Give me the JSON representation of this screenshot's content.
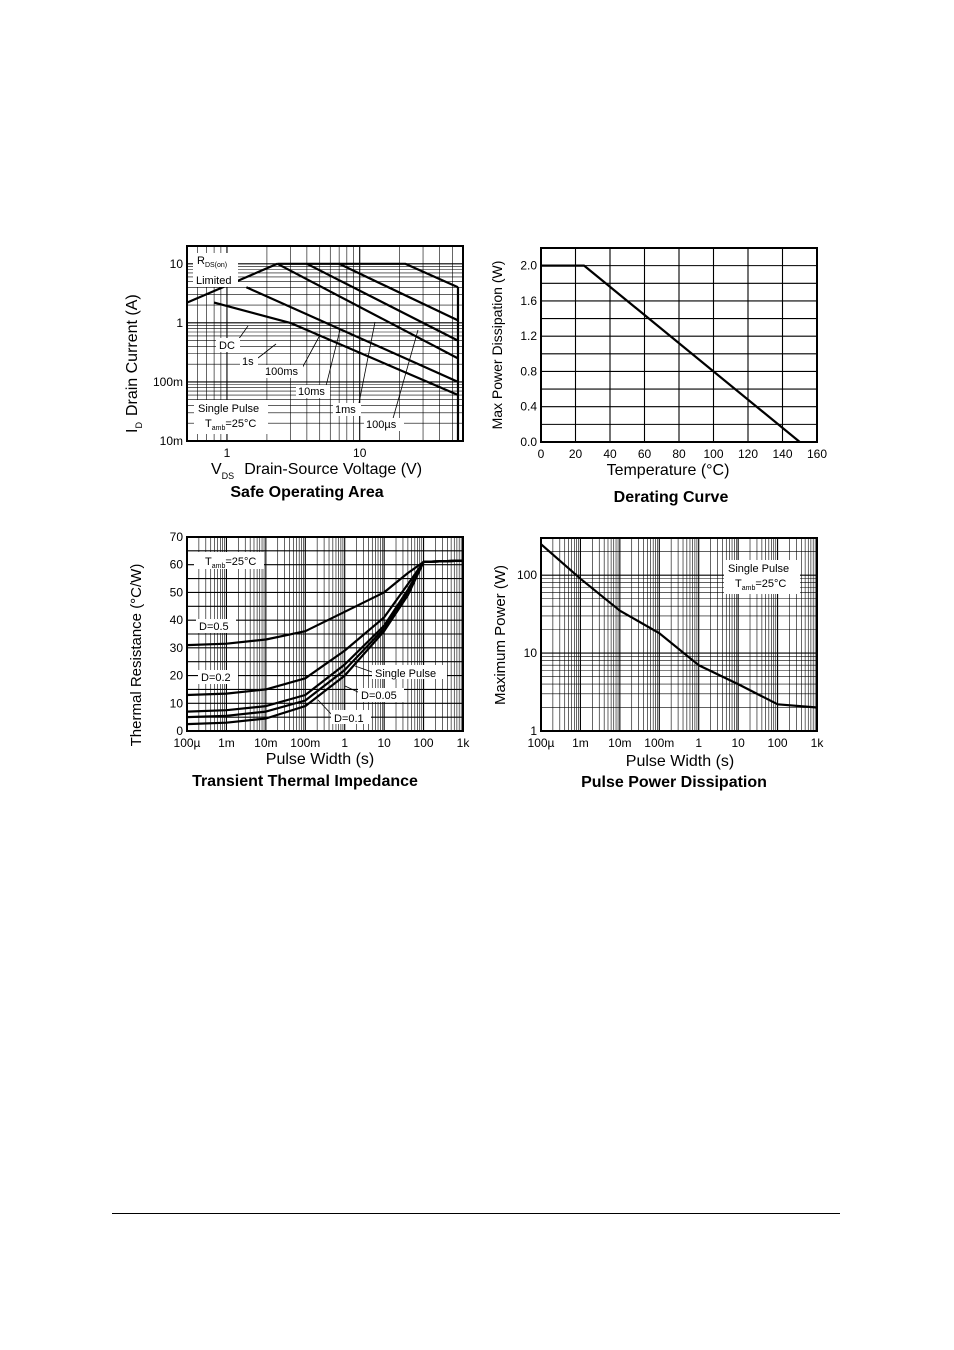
{
  "page": {
    "background": "#ffffff",
    "line_color": "#000000"
  },
  "chart_data": [
    {
      "id": "soa",
      "type": "line",
      "title": "Safe Operating Area",
      "xlabel_main": "V",
      "xlabel_sub": "DS",
      "xlabel_rest": "Drain-Source Voltage (V)",
      "ylabel_main": "I",
      "ylabel_sub": "D",
      "ylabel_rest": "Drain Current (A)",
      "xscale": "log",
      "yscale": "log",
      "xlim": [
        0.5,
        60
      ],
      "ylim": [
        0.01,
        20
      ],
      "xticks": [
        {
          "v": 1,
          "label": "1"
        },
        {
          "v": 10,
          "label": "10"
        }
      ],
      "yticks": [
        {
          "v": 10,
          "label": "10"
        },
        {
          "v": 1,
          "label": "1"
        },
        {
          "v": 0.1,
          "label": "100m"
        },
        {
          "v": 0.01,
          "label": "10m"
        }
      ],
      "grid": true,
      "series": [
        {
          "name": "R",
          "points": [
            [
              0.5,
              2.2
            ],
            [
              2.4,
              10
            ]
          ]
        },
        {
          "name": "DC",
          "points": [
            [
              0.8,
              2.2
            ],
            [
              3.0,
              1.0
            ],
            [
              55,
              0.06
            ]
          ]
        },
        {
          "name": "1s",
          "points": [
            [
              1.4,
              4.0
            ],
            [
              55,
              0.1
            ]
          ]
        },
        {
          "name": "100ms",
          "points": [
            [
              2.4,
              10
            ],
            [
              55,
              0.25
            ]
          ]
        },
        {
          "name": "10ms",
          "points": [
            [
              4.0,
              10
            ],
            [
              55,
              0.5
            ]
          ]
        },
        {
          "name": "1ms",
          "points": [
            [
              7.0,
              10
            ],
            [
              55,
              1.1
            ]
          ]
        },
        {
          "name": "100µs",
          "points": [
            [
              2.4,
              10
            ],
            [
              22,
              10
            ],
            [
              55,
              4.0
            ]
          ]
        }
      ],
      "vlines": [
        {
          "x": 55,
          "y0": 0.01,
          "y1": 4.0
        }
      ],
      "labels": {
        "rds_main": "R",
        "rds_sub": "DS(on)",
        "rds_line2": "Limited",
        "dc": "DC",
        "s1": "1s",
        "ms100": "100ms",
        "ms10": "10ms",
        "ms1": "1ms",
        "us100": "100µs",
        "note_line1": "Single Pulse",
        "note_t": "T",
        "note_sub": "amb",
        "note_rest": "=25°C"
      }
    },
    {
      "id": "derating",
      "type": "line",
      "title": "Derating Curve",
      "xlabel": "Temperature (°C)",
      "ylabel": "Max Power Dissipation (W)",
      "xlim": [
        0,
        160
      ],
      "ylim": [
        0,
        2.2
      ],
      "xticks": [
        {
          "v": 0,
          "label": "0"
        },
        {
          "v": 20,
          "label": "20"
        },
        {
          "v": 40,
          "label": "40"
        },
        {
          "v": 60,
          "label": "60"
        },
        {
          "v": 80,
          "label": "80"
        },
        {
          "v": 100,
          "label": "100"
        },
        {
          "v": 120,
          "label": "120"
        },
        {
          "v": 140,
          "label": "140"
        },
        {
          "v": 160,
          "label": "160"
        }
      ],
      "yticks": [
        {
          "v": 0,
          "label": "0.0"
        },
        {
          "v": 0.4,
          "label": "0.4"
        },
        {
          "v": 0.8,
          "label": "0.8"
        },
        {
          "v": 1.2,
          "label": "1.2"
        },
        {
          "v": 1.6,
          "label": "1.6"
        },
        {
          "v": 2.0,
          "label": "2.0"
        }
      ],
      "grid": true,
      "series": [
        {
          "points": [
            [
              0,
              2.0
            ],
            [
              25,
              2.0
            ],
            [
              150,
              0.0
            ]
          ]
        }
      ]
    },
    {
      "id": "thermal",
      "type": "line",
      "title": "Transient Thermal Impedance",
      "xlabel": "Pulse Width (s)",
      "ylabel": "Thermal Resistance (°C/W)",
      "xscale": "log",
      "xlim": [
        0.0001,
        1000
      ],
      "ylim": [
        0,
        70
      ],
      "xticks": [
        {
          "v": 0.0001,
          "label": "100µ"
        },
        {
          "v": 0.001,
          "label": "1m"
        },
        {
          "v": 0.01,
          "label": "10m"
        },
        {
          "v": 0.1,
          "label": "100m"
        },
        {
          "v": 1,
          "label": "1"
        },
        {
          "v": 10,
          "label": "10"
        },
        {
          "v": 100,
          "label": "100"
        },
        {
          "v": 1000,
          "label": "1k"
        }
      ],
      "yticks": [
        {
          "v": 0,
          "label": "0"
        },
        {
          "v": 10,
          "label": "10"
        },
        {
          "v": 20,
          "label": "20"
        },
        {
          "v": 30,
          "label": "30"
        },
        {
          "v": 40,
          "label": "40"
        },
        {
          "v": 50,
          "label": "50"
        },
        {
          "v": 60,
          "label": "60"
        },
        {
          "v": 70,
          "label": "70"
        }
      ],
      "grid": true,
      "series": [
        {
          "name": "D=0.5",
          "points": [
            [
              0.0001,
              31
            ],
            [
              0.001,
              31.5
            ],
            [
              0.01,
              33
            ],
            [
              0.1,
              36
            ],
            [
              1,
              43
            ],
            [
              10,
              50
            ],
            [
              40,
              57
            ],
            [
              100,
              61
            ],
            [
              1000,
              61.5
            ]
          ]
        },
        {
          "name": "D=0.2",
          "points": [
            [
              0.0001,
              13
            ],
            [
              0.001,
              13.5
            ],
            [
              0.01,
              15
            ],
            [
              0.1,
              19
            ],
            [
              1,
              29
            ],
            [
              10,
              41
            ],
            [
              40,
              53
            ],
            [
              100,
              61
            ],
            [
              1000,
              61.5
            ]
          ]
        },
        {
          "name": "D=0.1",
          "points": [
            [
              0.0001,
              7
            ],
            [
              0.001,
              7.5
            ],
            [
              0.01,
              9
            ],
            [
              0.1,
              13
            ],
            [
              1,
              24
            ],
            [
              10,
              38
            ],
            [
              40,
              51
            ],
            [
              100,
              61
            ],
            [
              1000,
              61.5
            ]
          ]
        },
        {
          "name": "D=0.05",
          "points": [
            [
              0.0001,
              5
            ],
            [
              0.001,
              5.5
            ],
            [
              0.01,
              7
            ],
            [
              0.1,
              11
            ],
            [
              1,
              22
            ],
            [
              10,
              37
            ],
            [
              40,
              50
            ],
            [
              100,
              61
            ],
            [
              1000,
              61.5
            ]
          ]
        },
        {
          "name": "Single Pulse",
          "points": [
            [
              0.0001,
              2.5
            ],
            [
              0.001,
              3
            ],
            [
              0.01,
              4.5
            ],
            [
              0.1,
              9
            ],
            [
              1,
              20
            ],
            [
              10,
              36
            ],
            [
              40,
              49
            ],
            [
              100,
              61
            ],
            [
              1000,
              61.5
            ]
          ]
        }
      ],
      "labels": {
        "t": "T",
        "sub": "amb",
        "rest": "=25°C"
      }
    },
    {
      "id": "pulse",
      "type": "line",
      "title": "Pulse Power Dissipation",
      "xlabel": "Pulse Width (s)",
      "ylabel": "Maximum Power (W)",
      "xscale": "log",
      "yscale": "log",
      "xlim": [
        0.0001,
        1000
      ],
      "ylim": [
        1,
        300
      ],
      "xticks": [
        {
          "v": 0.0001,
          "label": "100µ"
        },
        {
          "v": 0.001,
          "label": "1m"
        },
        {
          "v": 0.01,
          "label": "10m"
        },
        {
          "v": 0.1,
          "label": "100m"
        },
        {
          "v": 1,
          "label": "1"
        },
        {
          "v": 10,
          "label": "10"
        },
        {
          "v": 100,
          "label": "100"
        },
        {
          "v": 1000,
          "label": "1k"
        }
      ],
      "yticks": [
        {
          "v": 1,
          "label": "1"
        },
        {
          "v": 10,
          "label": "10"
        },
        {
          "v": 100,
          "label": "100"
        }
      ],
      "grid": true,
      "series": [
        {
          "points": [
            [
              0.0001,
              250
            ],
            [
              0.001,
              90
            ],
            [
              0.01,
              35
            ],
            [
              0.1,
              18
            ],
            [
              1,
              7
            ],
            [
              10,
              4
            ],
            [
              100,
              2.2
            ],
            [
              1000,
              2.0
            ]
          ]
        }
      ],
      "labels": {
        "line1": "Single Pulse",
        "t": "T",
        "sub": "amb",
        "rest": "=25°C"
      }
    }
  ]
}
